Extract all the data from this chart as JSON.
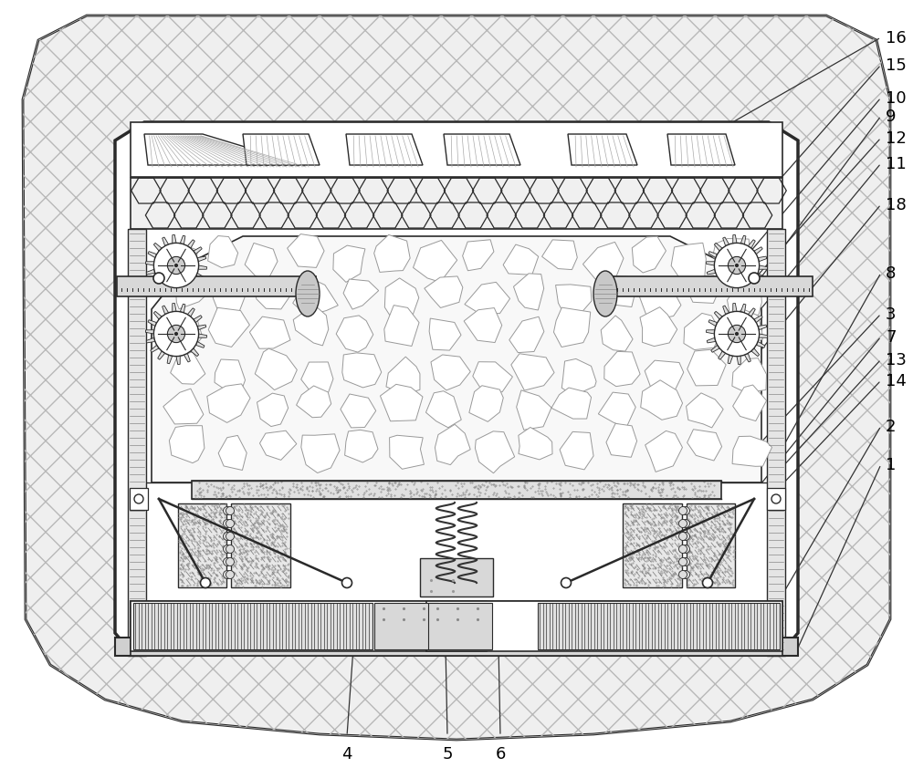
{
  "fig_width": 10.0,
  "fig_height": 8.54,
  "dpi": 100,
  "bg_color": "#ffffff",
  "lc": "#2a2a2a",
  "outer_fill": "#eeeeee",
  "white": "#ffffff",
  "light_gray": "#e8e8e8",
  "med_gray": "#d0d0d0",
  "dark_gray": "#888888",
  "stone_fill": "#f5f5f5",
  "stone_edge": "#999999"
}
